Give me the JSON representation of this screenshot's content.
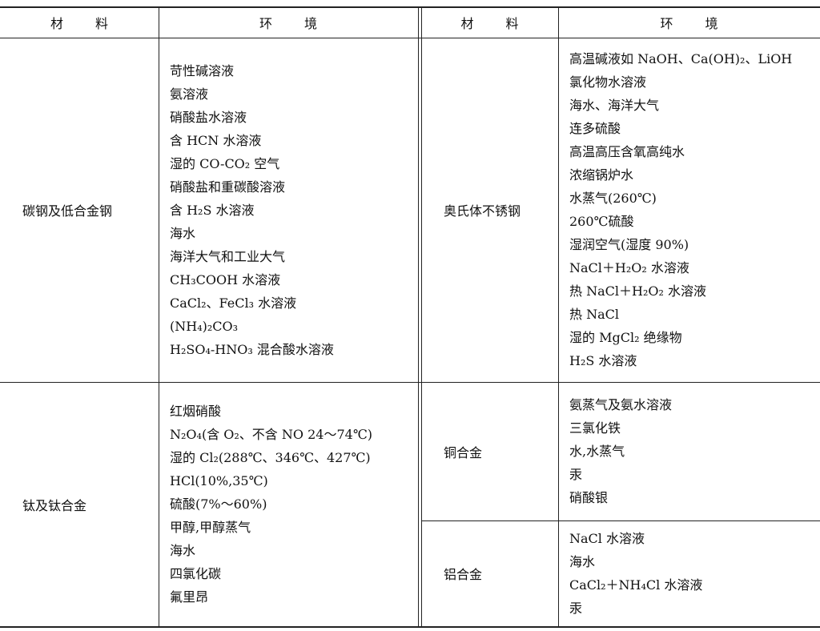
{
  "table": {
    "header": [
      "材料",
      "环境",
      "材料",
      "环境"
    ],
    "left": [
      {
        "material": "碳钢及低合金钢",
        "environments": [
          "苛性碱溶液",
          "氨溶液",
          "硝酸盐水溶液",
          "含 HCN 水溶液",
          "湿的 CO-CO₂ 空气",
          "硝酸盐和重碳酸溶液",
          "含 H₂S 水溶液",
          "海水",
          "海洋大气和工业大气",
          "CH₃COOH 水溶液",
          "CaCl₂、FeCl₃ 水溶液",
          "(NH₄)₂CO₃",
          "H₂SO₄-HNO₃ 混合酸水溶液"
        ]
      },
      {
        "material": "钛及钛合金",
        "environments": [
          "红烟硝酸",
          "N₂O₄(含 O₂、不含 NO 24～74℃)",
          "湿的 Cl₂(288℃、346℃、427℃)",
          "HCl(10%,35℃)",
          "硫酸(7%～60%)",
          "甲醇,甲醇蒸气",
          "海水",
          "四氯化碳",
          "氟里昂"
        ]
      }
    ],
    "right": [
      {
        "material": "奥氏体不锈钢",
        "environments": [
          "高温碱液如 NaOH、Ca(OH)₂、LiOH",
          "氯化物水溶液",
          "海水、海洋大气",
          "连多硫酸",
          "高温高压含氧高纯水",
          "浓缩锅炉水",
          "水蒸气(260℃)",
          "260℃硫酸",
          "湿润空气(湿度 90%)",
          "NaCl＋H₂O₂ 水溶液",
          "热 NaCl＋H₂O₂ 水溶液",
          "热 NaCl",
          "湿的 MgCl₂ 绝缘物",
          "H₂S 水溶液"
        ]
      },
      {
        "material": "铜合金",
        "environments": [
          "氨蒸气及氨水溶液",
          "三氯化铁",
          "水,水蒸气",
          "汞",
          "硝酸银"
        ]
      },
      {
        "material": "铝合金",
        "environments": [
          "NaCl 水溶液",
          "海水",
          "CaCl₂＋NH₄Cl 水溶液",
          "汞"
        ]
      }
    ]
  }
}
